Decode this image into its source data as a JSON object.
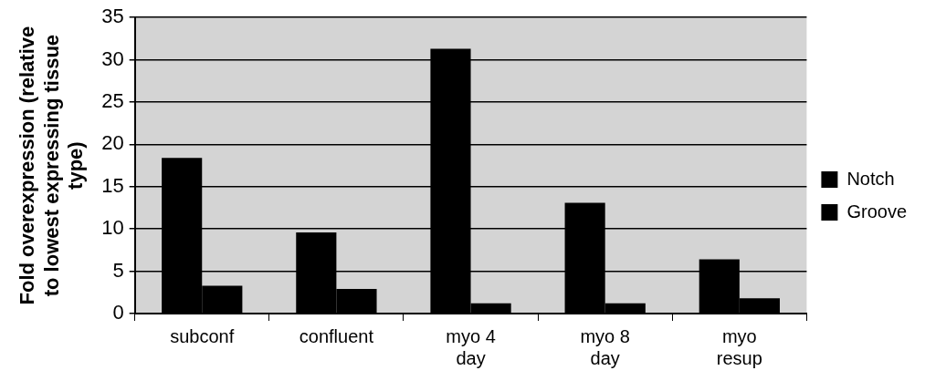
{
  "chart_data": {
    "type": "bar",
    "ylabel": "Fold overexpression (relative to lowest expressing tissue type)",
    "categories": [
      "subconf",
      "confluent",
      "myo 4 day",
      "myo 8 day",
      "myo resup"
    ],
    "series": [
      {
        "name": "Notch",
        "color": "#000000",
        "values": [
          18.4,
          9.6,
          31.3,
          13.1,
          6.4
        ]
      },
      {
        "name": "Groove",
        "color": "#000000",
        "values": [
          3.3,
          2.9,
          1.2,
          1.2,
          1.8
        ]
      }
    ],
    "ylim": [
      0,
      35
    ],
    "yticks": [
      0,
      5,
      10,
      15,
      20,
      25,
      30,
      35
    ],
    "grid": "y",
    "legend": "right"
  }
}
